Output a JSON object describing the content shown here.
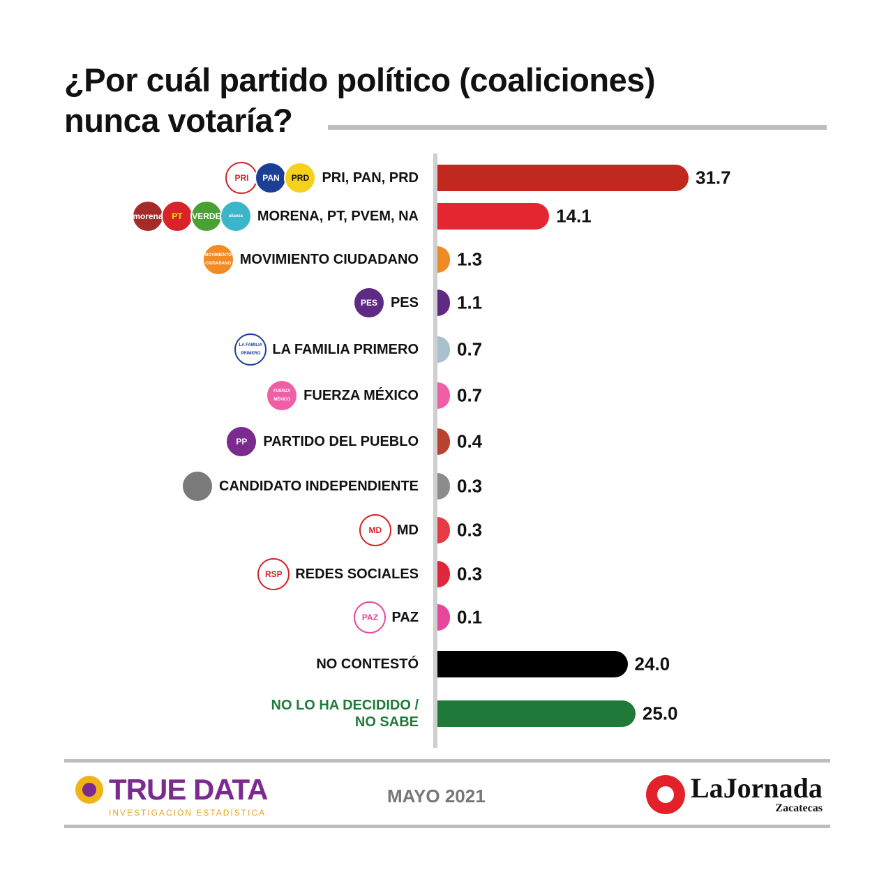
{
  "title": {
    "line1": "¿Por cuál partido político (coaliciones)",
    "line2": "nunca votaría?"
  },
  "chart_data": {
    "type": "bar",
    "orientation": "horizontal",
    "title": "¿Por cuál partido político (coaliciones) nunca votaría?",
    "categories": [
      "PRI, PAN, PRD",
      "MORENA, PT, PVEM, NA",
      "MOVIMIENTO CIUDADANO",
      "PES",
      "LA FAMILIA PRIMERO",
      "FUERZA MÉXICO",
      "PARTIDO DEL PUEBLO",
      "CANDIDATO INDEPENDIENTE",
      "MD",
      "REDES SOCIALES",
      "PAZ",
      "NO CONTESTÓ",
      "NO LO HA DECIDIDO / NO SABE"
    ],
    "values": [
      31.7,
      14.1,
      1.3,
      1.1,
      0.7,
      0.7,
      0.4,
      0.3,
      0.3,
      0.3,
      0.1,
      24.0,
      25.0
    ],
    "value_labels": [
      "31.7",
      "14.1",
      "1.3",
      "1.1",
      "0.7",
      "0.7",
      "0.4",
      "0.3",
      "0.3",
      "0.3",
      "0.1",
      "24.0",
      "25.0"
    ],
    "colors": [
      "#c1281e",
      "#e32630",
      "#f08a24",
      "#5e2a84",
      "#a9c1cd",
      "#ef5fa7",
      "#b8412f",
      "#8c8c8c",
      "#e63a45",
      "#e0263a",
      "#e8489b",
      "#000000",
      "#1f7a3a"
    ],
    "label_colors": [
      "#111111",
      "#111111",
      "#111111",
      "#111111",
      "#111111",
      "#111111",
      "#111111",
      "#111111",
      "#111111",
      "#111111",
      "#111111",
      "#111111",
      "#1f7a3a"
    ],
    "xlim": [
      0,
      31.7
    ],
    "grid": false,
    "legend": "none"
  },
  "logos": [
    [
      {
        "text": "PRI",
        "bg": "#ffffff",
        "fg": "#d2232a",
        "icon": "pri-logo-icon"
      },
      {
        "text": "PAN",
        "bg": "#1b3f94",
        "fg": "#ffffff",
        "icon": "pan-logo-icon"
      },
      {
        "text": "PRD",
        "bg": "#f6d11c",
        "fg": "#111111",
        "icon": "prd-logo-icon"
      }
    ],
    [
      {
        "text": "morena",
        "bg": "#a52a2a",
        "fg": "#ffffff",
        "icon": "morena-logo-icon"
      },
      {
        "text": "PT",
        "bg": "#d8232a",
        "fg": "#ffde00",
        "icon": "pt-logo-icon"
      },
      {
        "text": "VERDE",
        "bg": "#4aa133",
        "fg": "#ffffff",
        "icon": "verde-logo-icon"
      },
      {
        "text": "alianza",
        "bg": "#3bb6c8",
        "fg": "#ffffff",
        "icon": "nueva-alianza-logo-icon"
      }
    ],
    [
      {
        "text": "MOVIMIENTO CIUDADANO",
        "bg": "#f28b24",
        "fg": "#ffffff",
        "icon": "movimiento-ciudadano-logo-icon"
      }
    ],
    [
      {
        "text": "PES",
        "bg": "#5e2a84",
        "fg": "#ffffff",
        "icon": "pes-logo-icon"
      }
    ],
    [
      {
        "text": "LA FAMILIA PRIMERO",
        "bg": "#ffffff",
        "fg": "#1b3f94",
        "icon": "la-familia-primero-logo-icon"
      }
    ],
    [
      {
        "text": "FUERZA MÉXICO",
        "bg": "#ef5fa7",
        "fg": "#ffffff",
        "icon": "fuerza-mexico-logo-icon"
      }
    ],
    [
      {
        "text": "PP",
        "bg": "#7b2a8f",
        "fg": "#ffffff",
        "icon": "partido-del-pueblo-logo-icon"
      }
    ],
    [
      {
        "text": "",
        "bg": "#7a7a7a",
        "fg": "#222222",
        "icon": "person-silhouette-icon"
      }
    ],
    [
      {
        "text": "MD",
        "bg": "#ffffff",
        "fg": "#d2232a",
        "icon": "md-logo-icon"
      }
    ],
    [
      {
        "text": "RSP",
        "bg": "#ffffff",
        "fg": "#d2232a",
        "icon": "redes-sociales-logo-icon"
      }
    ],
    [
      {
        "text": "PAZ",
        "bg": "#ffffff",
        "fg": "#e8489b",
        "icon": "paz-logo-icon"
      }
    ],
    [],
    []
  ],
  "footer": {
    "left_brand": {
      "name": "TRUE DATA",
      "tagline": "INVESTIGACIÓN ESTADÍSTICA",
      "icon": "true-data-logo-icon",
      "color": "#7b2a8f",
      "accent": "#e8a21a"
    },
    "date": "MAYO 2021",
    "right_brand": {
      "name": "LaJornada",
      "city": "Zacatecas",
      "icon": "la-jornada-sun-icon",
      "color": "#e2212a"
    }
  }
}
